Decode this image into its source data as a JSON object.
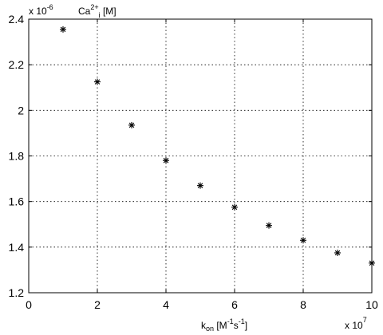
{
  "chart_data": {
    "type": "scatter",
    "title": "",
    "x": [
      1,
      2,
      3,
      4,
      5,
      6,
      7,
      8,
      9,
      10
    ],
    "y": [
      2.355,
      2.125,
      1.935,
      1.78,
      1.67,
      1.575,
      1.495,
      1.43,
      1.375,
      1.33
    ],
    "xlim": [
      0,
      10
    ],
    "ylim": [
      1.2,
      2.4
    ],
    "xticks": [
      "0",
      "2",
      "4",
      "6",
      "8",
      "10"
    ],
    "yticks": [
      "1.2",
      "1.4",
      "1.6",
      "1.8",
      "2",
      "2.2",
      "2.4"
    ],
    "xtick_values": [
      0,
      2,
      4,
      6,
      8,
      10
    ],
    "ytick_values": [
      1.2,
      1.4,
      1.6,
      1.8,
      2.0,
      2.2,
      2.4
    ],
    "xlabel": {
      "base": "k",
      "sub1": "on",
      "mid1": " [M",
      "sup1": "-1",
      "mid2": "s",
      "sup2": "-1",
      "end": "]"
    },
    "ylabel": {
      "pre": "Ca",
      "sup": "2+",
      "sub": "i",
      "end": " [M]"
    },
    "x_multiplier": {
      "base": "x 10",
      "exp": "7"
    },
    "y_multiplier": {
      "base": "x 10",
      "exp": "-6"
    },
    "marker": "asterisk",
    "grid": true,
    "legend": "none"
  }
}
